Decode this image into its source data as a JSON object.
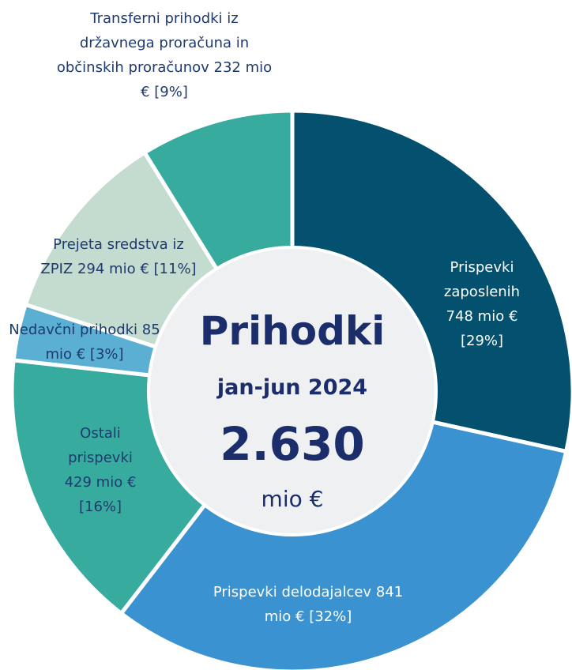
{
  "chart_data": {
    "type": "donut",
    "categories": [
      "Prispevki zaposlenih",
      "Prispevki delodajalcev",
      "Ostali prispevki",
      "Nedavčni prihodki",
      "Prejeta sredstva iz ZPIZ",
      "Transferni prihodki iz državnega proračuna in občinskih proračunov"
    ],
    "values": [
      748,
      841,
      429,
      85,
      294,
      232
    ],
    "value_labels": [
      "748 mio €",
      "841 mio €",
      "429  mio €",
      "85  mio €",
      "294 mio €",
      "232  mio €"
    ],
    "percent_labels": [
      "[29%]",
      "[32%]",
      "[16%]",
      "[3%]",
      "[11%]",
      "[9%]"
    ],
    "colors": [
      "#03506f",
      "#3a93d0",
      "#38ab9f",
      "#5aafd3",
      "#c4dccf",
      "#38ab9f"
    ],
    "label_colors": [
      "#ffffff",
      "#ffffff",
      "#1e3a6e",
      "#1e3a6e",
      "#1e3a6e",
      "#1e3a6e"
    ],
    "center_title": "Prihodki",
    "center_subtitle": "jan-jun 2024",
    "total_label": "2.630",
    "total_unit": "mio €"
  }
}
